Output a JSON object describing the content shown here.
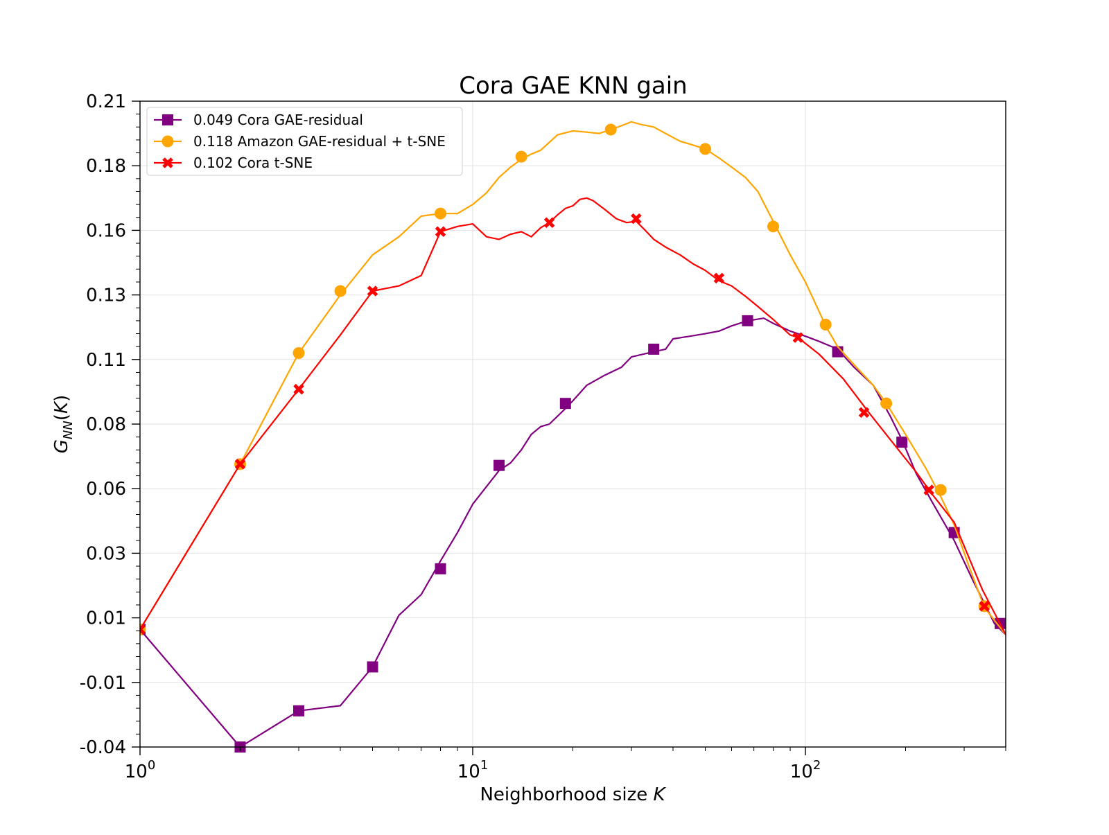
{
  "chart_data": {
    "type": "line",
    "title": "Cora GAE KNN gain",
    "xlabel": "Neighborhood size K",
    "ylabel": "G_NN(K)",
    "xscale": "log",
    "xlim": [
      1,
      400
    ],
    "ylim": [
      -0.04,
      0.21
    ],
    "grid": true,
    "legend_position": "top-left",
    "x_ticks": [
      {
        "value": 1,
        "base": "10",
        "exp": "0"
      },
      {
        "value": 10,
        "base": "10",
        "exp": "1"
      },
      {
        "value": 100,
        "base": "10",
        "exp": "2"
      }
    ],
    "y_tick_values": [
      -0.04,
      -0.015,
      0.01,
      0.035,
      0.06,
      0.085,
      0.11,
      0.135,
      0.16,
      0.185,
      0.21
    ],
    "y_tick_labels": [
      "-0.04",
      "-0.01",
      "0.01",
      "0.03",
      "0.06",
      "0.08",
      "0.11",
      "0.13",
      "0.16",
      "0.18",
      "0.21"
    ],
    "series": [
      {
        "name": "0.049 Cora GAE-residual",
        "color": "#800080",
        "marker": "square",
        "x": [
          1,
          2,
          3,
          4,
          5,
          6,
          7,
          8,
          9,
          10,
          12,
          13,
          14,
          15,
          16,
          17,
          19,
          20,
          22,
          25,
          28,
          30,
          35,
          38,
          40,
          45,
          50,
          55,
          60,
          67,
          75,
          80,
          90,
          100,
          110,
          125,
          140,
          160,
          180,
          195,
          215,
          240,
          280,
          320,
          370,
          400
        ],
        "y": [
          0.0055,
          -0.04,
          -0.026,
          -0.024,
          -0.009,
          0.011,
          0.019,
          0.032,
          0.043,
          0.054,
          0.067,
          0.07,
          0.075,
          0.081,
          0.084,
          0.085,
          0.091,
          0.094,
          0.1,
          0.104,
          0.107,
          0.111,
          0.113,
          0.114,
          0.118,
          0.119,
          0.12,
          0.121,
          0.123,
          0.125,
          0.126,
          0.124,
          0.121,
          0.119,
          0.117,
          0.114,
          0.107,
          0.1,
          0.088,
          0.079,
          0.066,
          0.055,
          0.04,
          0.024,
          0.0078,
          0.0035
        ],
        "markers_x": [
          1,
          2,
          3,
          5,
          8,
          12,
          19,
          35,
          67,
          125,
          195,
          280,
          385
        ],
        "markers_y": [
          0.0055,
          -0.04,
          -0.026,
          -0.009,
          0.029,
          0.069,
          0.093,
          0.114,
          0.125,
          0.113,
          0.078,
          0.043,
          0.0078
        ]
      },
      {
        "name": "0.118 Amazon GAE-residual + t-SNE",
        "color": "#ffa500",
        "marker": "circle",
        "x": [
          1,
          2,
          3,
          4,
          5,
          6,
          7,
          8,
          9,
          10,
          11,
          12,
          13,
          14,
          15,
          16,
          18,
          20,
          22,
          24,
          26,
          28,
          30,
          32,
          35,
          38,
          42,
          46,
          50,
          55,
          60,
          66,
          72,
          80,
          90,
          100,
          110,
          115,
          125,
          140,
          160,
          175,
          200,
          230,
          255,
          280,
          310,
          345,
          400
        ],
        "y": [
          0.0055,
          0.0695,
          0.1125,
          0.135,
          0.1505,
          0.1575,
          0.1655,
          0.1665,
          0.1665,
          0.17,
          0.1745,
          0.1805,
          0.1845,
          0.1875,
          0.1895,
          0.191,
          0.197,
          0.1985,
          0.198,
          0.1975,
          0.199,
          0.2005,
          0.202,
          0.201,
          0.2,
          0.1975,
          0.1945,
          0.193,
          0.1915,
          0.188,
          0.1845,
          0.1805,
          0.175,
          0.1635,
          0.1505,
          0.14,
          0.1285,
          0.123,
          0.115,
          0.108,
          0.1,
          0.093,
          0.081,
          0.068,
          0.057,
          0.046,
          0.03,
          0.014,
          0.0035
        ],
        "markers_x": [
          1,
          2,
          3,
          4,
          8,
          14,
          26,
          50,
          80,
          115,
          175,
          255,
          345
        ],
        "markers_y": [
          0.0055,
          0.0695,
          0.1125,
          0.1365,
          0.1665,
          0.1885,
          0.199,
          0.1915,
          0.1615,
          0.1235,
          0.093,
          0.0595,
          0.0145
        ]
      },
      {
        "name": "0.102 Cora t-SNE",
        "color": "#ff0000",
        "marker": "x",
        "x": [
          1,
          2,
          3,
          4,
          5,
          6,
          7,
          8,
          9,
          10,
          11,
          12,
          13,
          14,
          15,
          16,
          17,
          18,
          19,
          20,
          21,
          22,
          23,
          25,
          27,
          29,
          31,
          33,
          35,
          38,
          42,
          46,
          50,
          55,
          60,
          66,
          72,
          80,
          90,
          95,
          110,
          130,
          155,
          180,
          215,
          240,
          280,
          340,
          400
        ],
        "y": [
          0.0055,
          0.0695,
          0.0985,
          0.1195,
          0.1365,
          0.1385,
          0.1425,
          0.1595,
          0.1615,
          0.1625,
          0.1575,
          0.1565,
          0.1585,
          0.1595,
          0.1575,
          0.161,
          0.163,
          0.166,
          0.1685,
          0.1695,
          0.172,
          0.1725,
          0.1715,
          0.168,
          0.1645,
          0.163,
          0.1635,
          0.16,
          0.1565,
          0.1535,
          0.1505,
          0.147,
          0.1445,
          0.1405,
          0.1385,
          0.1345,
          0.1305,
          0.1255,
          0.1195,
          0.1185,
          0.112,
          0.1025,
          0.0895,
          0.079,
          0.0665,
          0.058,
          0.047,
          0.021,
          0.0035
        ],
        "markers_x": [
          1,
          2,
          3,
          5,
          8,
          17,
          31,
          55,
          95,
          150,
          235,
          345
        ],
        "markers_y": [
          0.0055,
          0.0695,
          0.0985,
          0.1365,
          0.1595,
          0.163,
          0.1645,
          0.1415,
          0.1185,
          0.0895,
          0.0595,
          0.0145
        ]
      }
    ]
  }
}
